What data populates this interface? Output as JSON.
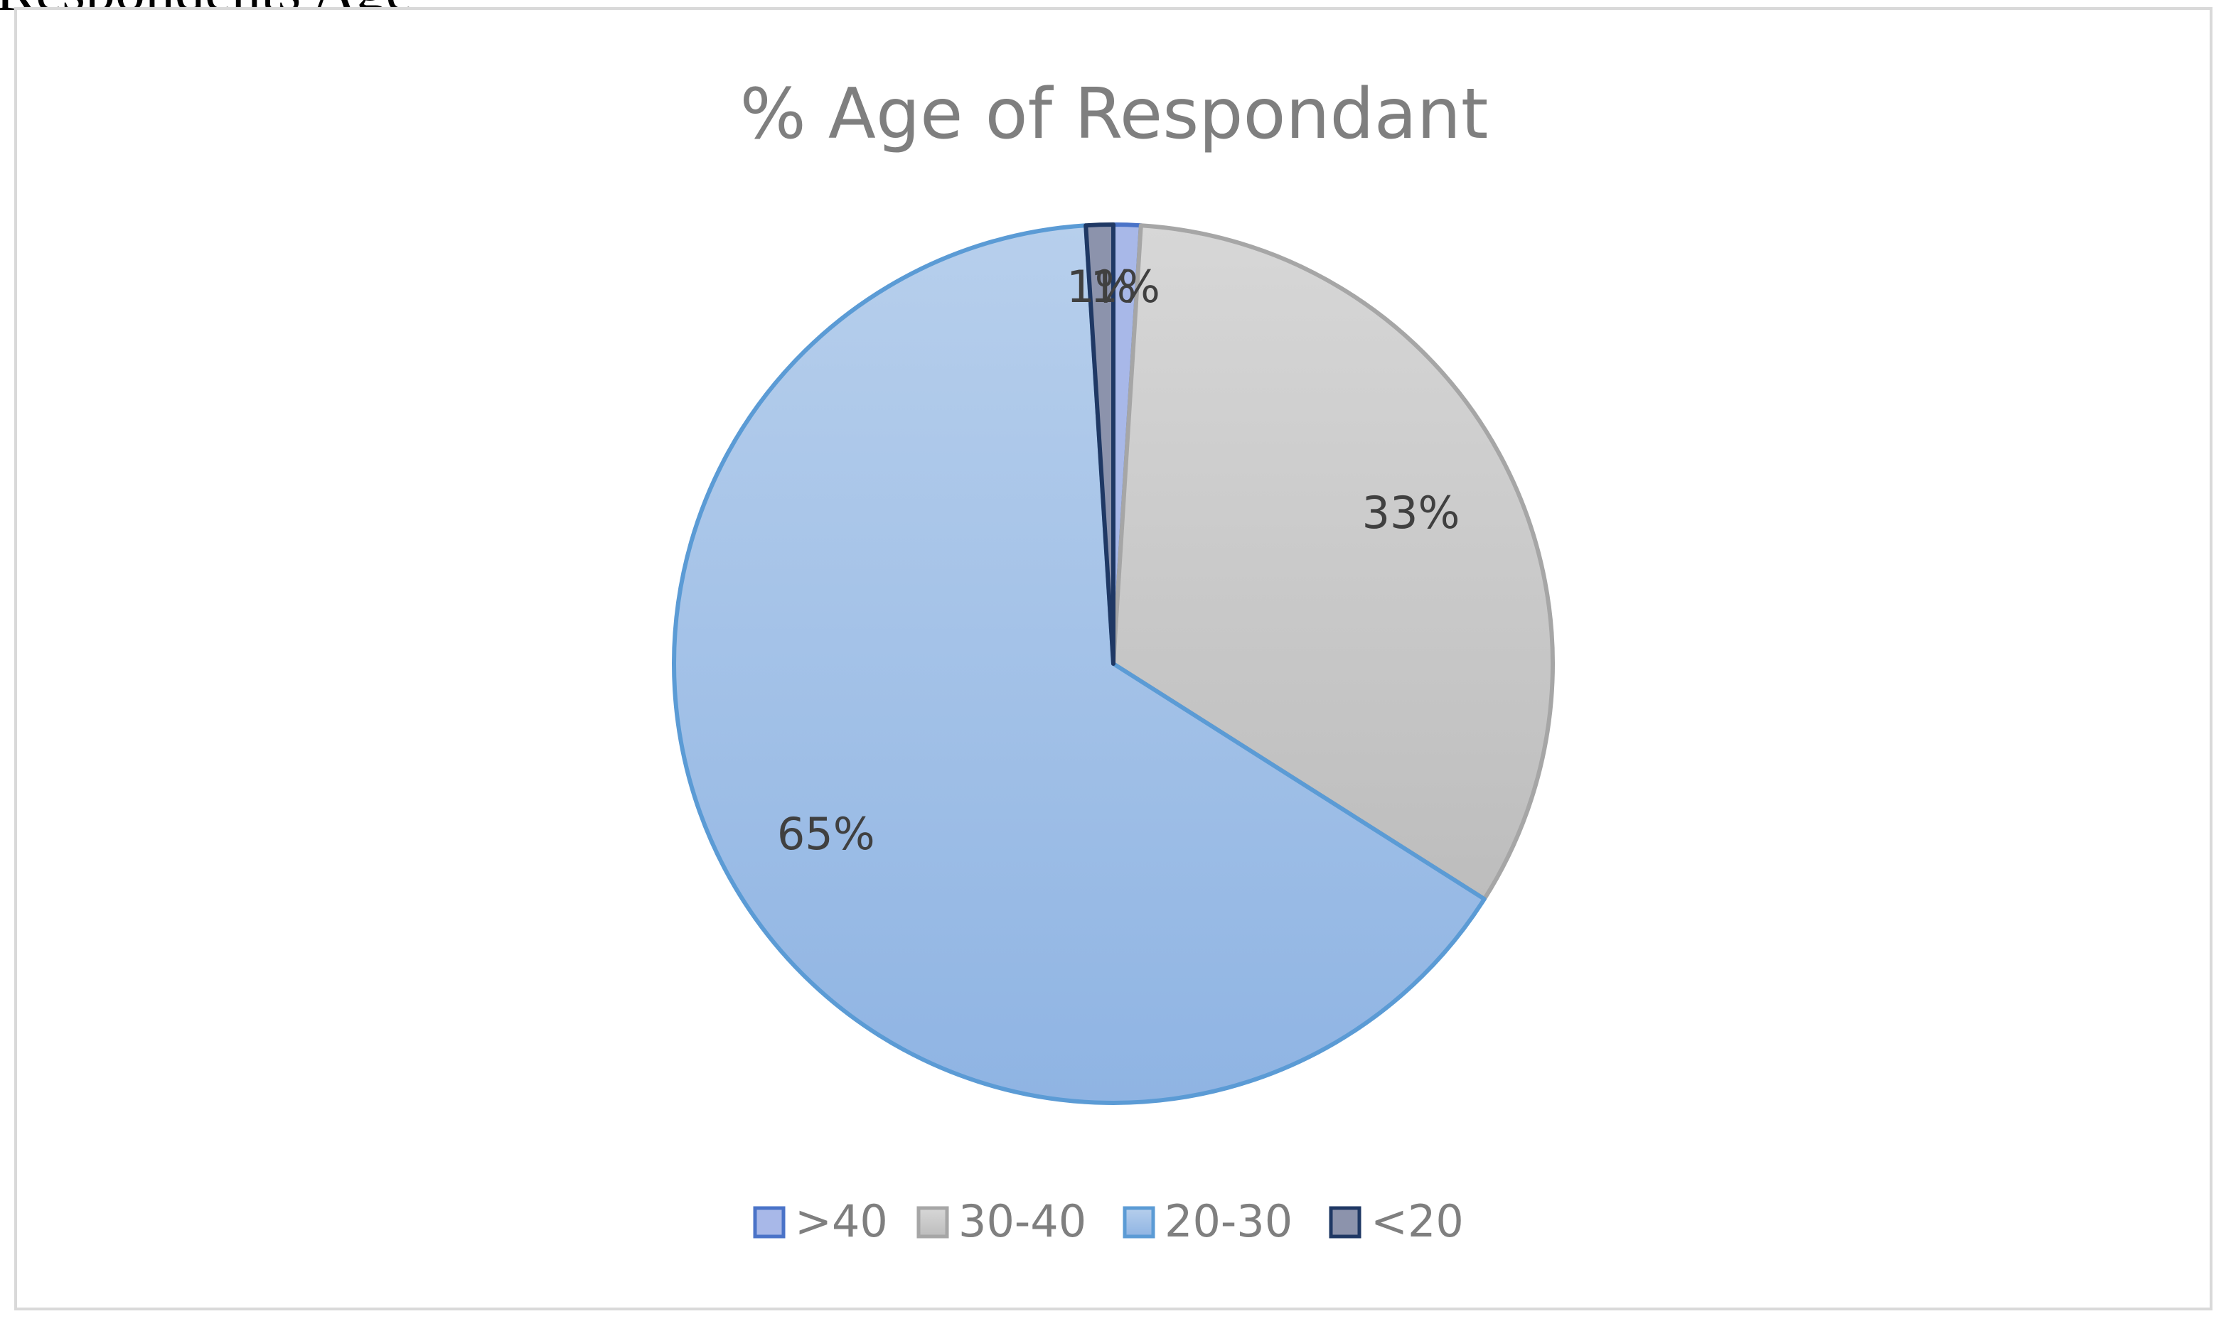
{
  "page": {
    "cropped_text": "Respondents Age"
  },
  "chart_data": {
    "type": "pie",
    "title": "% Age of Respondant",
    "categories": [
      ">40",
      "30-40",
      "20-30",
      "<20"
    ],
    "values": [
      1,
      33,
      65,
      1
    ],
    "data_labels": [
      "1%",
      "33%",
      "65%",
      "1%"
    ],
    "colors": {
      ">40": "#a8b8e8",
      "30-40": "#c9c9c9",
      "20-30": "#9dbfe6",
      "<20": "#8c93ac"
    },
    "stroke_colors": {
      ">40": "#4a73c8",
      "30-40": "#a6a6a6",
      "20-30": "#5b9bd5",
      "<20": "#1f3864"
    },
    "start_angle": "12 o'clock",
    "direction": "clockwise",
    "legend": {
      "position": "bottom"
    },
    "text_color": "#7f7f7f",
    "label_color": "#404040"
  }
}
